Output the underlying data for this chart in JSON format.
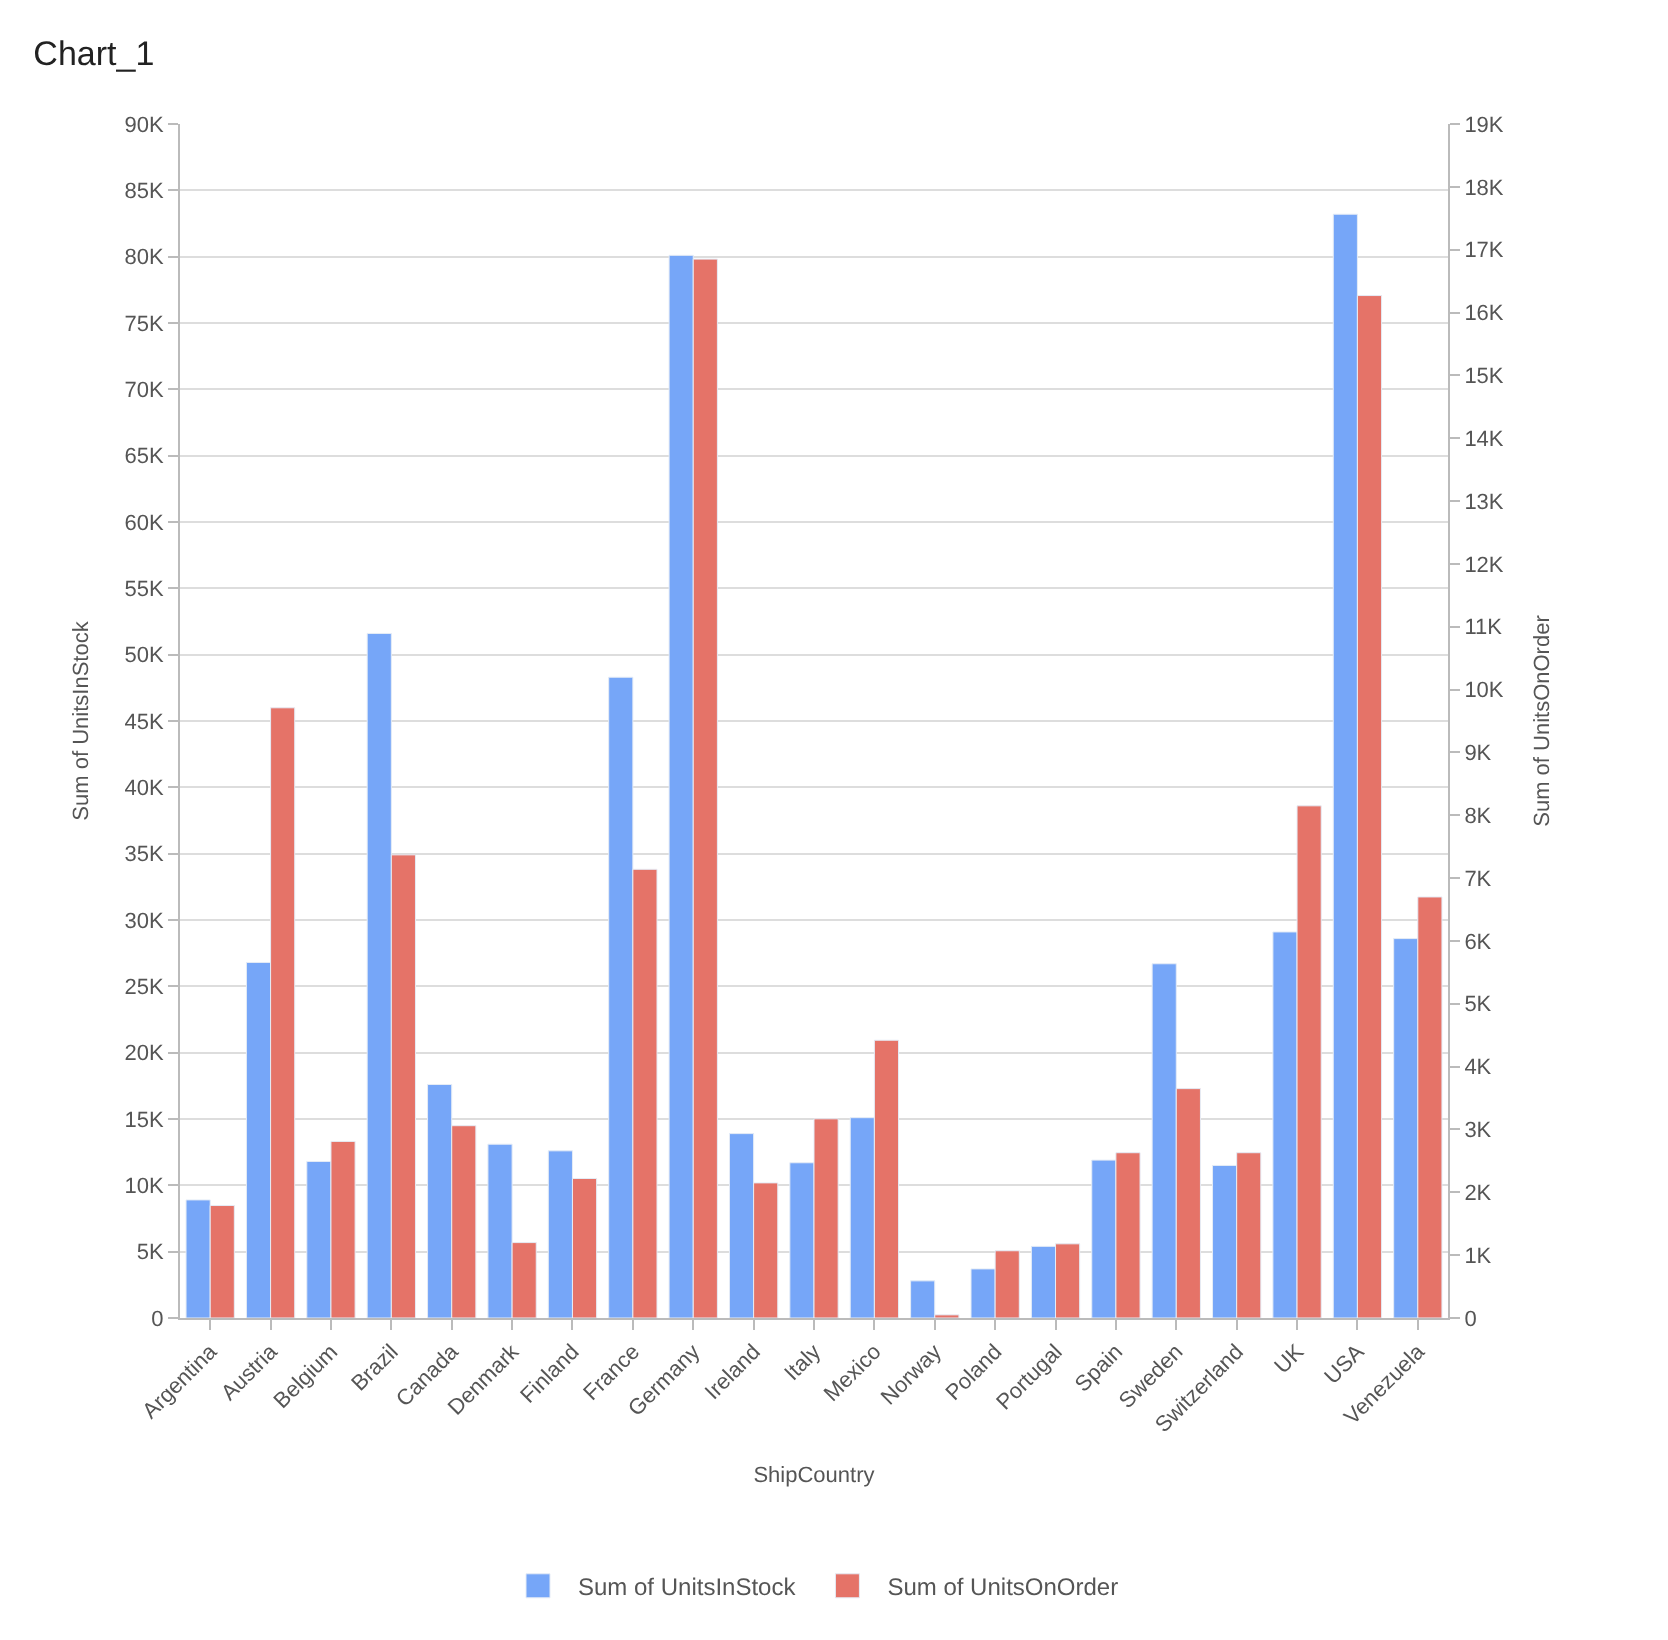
{
  "chart_data": {
    "type": "bar",
    "title": "Chart_1",
    "xlabel": "ShipCountry",
    "ylabel": "Sum of UnitsInStock",
    "y2label": "Sum of UnitsOnOrder",
    "categories": [
      "Argentina",
      "Austria",
      "Belgium",
      "Brazil",
      "Canada",
      "Denmark",
      "Finland",
      "France",
      "Germany",
      "Ireland",
      "Italy",
      "Mexico",
      "Norway",
      "Poland",
      "Portugal",
      "Spain",
      "Sweden",
      "Switzerland",
      "UK",
      "USA",
      "Venezuela"
    ],
    "series": [
      {
        "name": "Sum of UnitsInStock",
        "color": "#76a6f8",
        "values": [
          8900,
          26800,
          11800,
          51600,
          17600,
          13100,
          12600,
          48300,
          80100,
          13900,
          11700,
          15100,
          2800,
          3700,
          5400,
          11900,
          26700,
          11500,
          29100,
          83200,
          28600
        ]
      },
      {
        "name": "Sum of UnitsOnOrder",
        "color": "#e57368",
        "axis": "y2",
        "values": [
          1790,
          9710,
          2810,
          7370,
          3060,
          1200,
          2220,
          7140,
          16850,
          2150,
          3170,
          4420,
          50,
          1070,
          1180,
          2630,
          3650,
          2630,
          8150,
          16270,
          6700
        ]
      }
    ],
    "ylim": [
      0,
      90000
    ],
    "yticks": [
      0,
      {
        "value": 5000,
        "label": "5K"
      },
      {
        "value": 10000,
        "label": "10K"
      },
      {
        "value": 15000,
        "label": "15K"
      },
      {
        "value": 20000,
        "label": "20K"
      },
      {
        "value": 25000,
        "label": "25K"
      },
      {
        "value": 30000,
        "label": "30K"
      },
      {
        "value": 35000,
        "label": "35K"
      },
      {
        "value": 40000,
        "label": "40K"
      },
      {
        "value": 45000,
        "label": "45K"
      },
      {
        "value": 50000,
        "label": "50K"
      },
      {
        "value": 55000,
        "label": "55K"
      },
      {
        "value": 60000,
        "label": "60K"
      },
      {
        "value": 65000,
        "label": "65K"
      },
      {
        "value": 70000,
        "label": "70K"
      },
      {
        "value": 75000,
        "label": "75K"
      },
      {
        "value": 80000,
        "label": "80K"
      },
      {
        "value": 85000,
        "label": "85K"
      },
      {
        "value": 90000,
        "label": "90K"
      }
    ],
    "y2lim": [
      0,
      19000
    ],
    "y2ticks": [
      0,
      {
        "value": 1000,
        "label": "1K"
      },
      {
        "value": 2000,
        "label": "2K"
      },
      {
        "value": 3000,
        "label": "3K"
      },
      {
        "value": 4000,
        "label": "4K"
      },
      {
        "value": 5000,
        "label": "5K"
      },
      {
        "value": 6000,
        "label": "6K"
      },
      {
        "value": 7000,
        "label": "7K"
      },
      {
        "value": 8000,
        "label": "8K"
      },
      {
        "value": 9000,
        "label": "9K"
      },
      {
        "value": 10000,
        "label": "10K"
      },
      {
        "value": 11000,
        "label": "11K"
      },
      {
        "value": 12000,
        "label": "12K"
      },
      {
        "value": 13000,
        "label": "13K"
      },
      {
        "value": 14000,
        "label": "14K"
      },
      {
        "value": 15000,
        "label": "15K"
      },
      {
        "value": 16000,
        "label": "16K"
      },
      {
        "value": 17000,
        "label": "17K"
      },
      {
        "value": 18000,
        "label": "18K"
      },
      {
        "value": 19000,
        "label": "19K"
      }
    ],
    "grid": "y",
    "legend": "bottom"
  }
}
